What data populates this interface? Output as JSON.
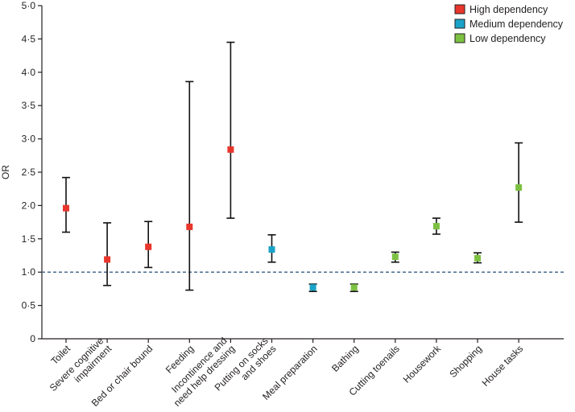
{
  "chart_data": {
    "type": "scatter",
    "title": "",
    "xlabel": "",
    "ylabel": "OR",
    "ylim": [
      0,
      5
    ],
    "yticks": [
      "0",
      "0·5",
      "1·0",
      "1·5",
      "2·0",
      "2·5",
      "3·0",
      "3·5",
      "4·0",
      "4·5",
      "5·0"
    ],
    "reference_line": 1.0,
    "legend": [
      {
        "name": "High dependency",
        "color": "#e8362c"
      },
      {
        "name": "Medium dependency",
        "color": "#1aa3c8"
      },
      {
        "name": "Low dependency",
        "color": "#7dc142"
      }
    ],
    "points": [
      {
        "category": [
          "Toilet"
        ],
        "group": "High dependency",
        "or": 1.96,
        "lower": 1.6,
        "upper": 2.42
      },
      {
        "category": [
          "Severe cognitive",
          "impairment"
        ],
        "group": "High dependency",
        "or": 1.19,
        "lower": 0.8,
        "upper": 1.74
      },
      {
        "category": [
          "Bed or chair bound"
        ],
        "group": "High dependency",
        "or": 1.38,
        "lower": 1.07,
        "upper": 1.76
      },
      {
        "category": [
          "Feeding"
        ],
        "group": "High dependency",
        "or": 1.68,
        "lower": 0.73,
        "upper": 3.86
      },
      {
        "category": [
          "Incontinence and",
          "need help dressing"
        ],
        "group": "High dependency",
        "or": 2.84,
        "lower": 1.81,
        "upper": 4.45
      },
      {
        "category": [
          "Putting on socks",
          "and shoes"
        ],
        "group": "Medium dependency",
        "or": 1.34,
        "lower": 1.15,
        "upper": 1.56
      },
      {
        "category": [
          "Meal preparation"
        ],
        "group": "Medium dependency",
        "or": 0.77,
        "lower": 0.71,
        "upper": 0.82
      },
      {
        "category": [
          "Bathing"
        ],
        "group": "Low dependency",
        "or": 0.77,
        "lower": 0.71,
        "upper": 0.82
      },
      {
        "category": [
          "Cutting toenails"
        ],
        "group": "Low dependency",
        "or": 1.23,
        "lower": 1.15,
        "upper": 1.3
      },
      {
        "category": [
          "Housework"
        ],
        "group": "Low dependency",
        "or": 1.69,
        "lower": 1.57,
        "upper": 1.81
      },
      {
        "category": [
          "Shopping"
        ],
        "group": "Low dependency",
        "or": 1.21,
        "lower": 1.14,
        "upper": 1.29
      },
      {
        "category": [
          "House tasks"
        ],
        "group": "Low dependency",
        "or": 2.27,
        "lower": 1.75,
        "upper": 2.94
      }
    ]
  }
}
